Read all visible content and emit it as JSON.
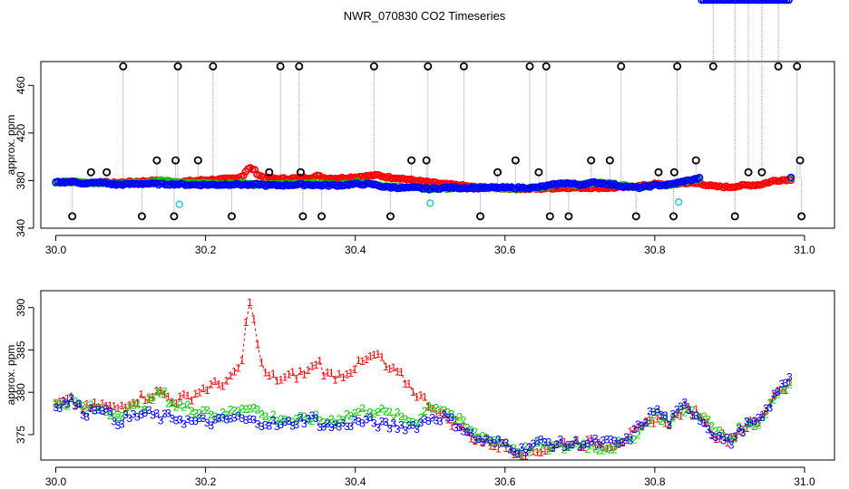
{
  "title": "NWR_070830  CO2 Timeseries",
  "colors": {
    "series1": "#ff0000",
    "series2": "#00cc00",
    "series3": "#0000ff",
    "outlier": "#000000",
    "flagged": "#33cccc",
    "spike": "#999999"
  },
  "chart_data": [
    {
      "type": "scatter",
      "panel": "top",
      "title": "NWR_070830  CO2 Timeseries",
      "xlabel": "",
      "ylabel": "approx. ppm",
      "xlim": [
        29.98,
        31.04
      ],
      "ylim": [
        340,
        480
      ],
      "xticks": [
        30.0,
        30.2,
        30.4,
        30.6,
        30.8,
        31.0
      ],
      "xtick_labels": [
        "30.0",
        "30.2",
        "30.4",
        "30.6",
        "30.8",
        "31.0"
      ],
      "yticks": [
        340,
        380,
        420,
        460
      ],
      "ytick_labels": [
        "340",
        "380",
        "420",
        "460"
      ],
      "grid": false,
      "spikes_high": [
        30.09,
        30.163,
        30.21,
        30.3,
        30.325,
        30.425,
        30.497,
        30.545,
        30.633,
        30.655,
        30.755,
        30.83,
        30.878,
        30.965,
        30.99
      ],
      "spikes_mid": [
        30.047,
        30.068,
        30.135,
        30.16,
        30.19,
        30.285,
        30.327,
        30.475,
        30.495,
        30.59,
        30.614,
        30.645,
        30.715,
        30.74,
        30.805,
        30.826,
        30.855,
        30.925,
        30.943,
        30.994
      ],
      "spikes_low": [
        30.022,
        30.115,
        30.158,
        30.235,
        30.33,
        30.355,
        30.447,
        30.567,
        30.66,
        30.685,
        30.775,
        30.825,
        30.907,
        30.996
      ],
      "flagged_points": [
        {
          "x": 30.165,
          "y": 360
        },
        {
          "x": 30.5,
          "y": 361
        },
        {
          "x": 30.832,
          "y": 362
        }
      ]
    },
    {
      "type": "line",
      "panel": "bottom",
      "xlabel": "",
      "ylabel": "approx. ppm",
      "xlim": [
        29.98,
        31.04
      ],
      "ylim": [
        372,
        392
      ],
      "xticks": [
        30.0,
        30.2,
        30.4,
        30.6,
        30.8,
        31.0
      ],
      "xtick_labels": [
        "30.0",
        "30.2",
        "30.4",
        "30.6",
        "30.8",
        "31.0"
      ],
      "yticks": [
        375,
        380,
        385,
        390
      ],
      "ytick_labels": [
        "375",
        "380",
        "385",
        "390"
      ],
      "grid": false,
      "series": [
        {
          "marker": "1",
          "color": "#ff0000",
          "x": [
            30.0,
            30.02,
            30.04,
            30.06,
            30.08,
            30.1,
            30.12,
            30.14,
            30.16,
            30.18,
            30.2,
            30.22,
            30.24,
            30.25,
            30.255,
            30.26,
            30.265,
            30.27,
            30.28,
            30.3,
            30.32,
            30.34,
            30.35,
            30.36,
            30.38,
            30.4,
            30.42,
            30.43,
            30.44,
            30.46,
            30.48,
            30.5,
            30.52,
            30.54,
            30.56,
            30.58,
            30.6,
            30.62,
            30.64,
            30.66,
            30.68,
            30.7,
            30.72,
            30.74,
            30.76,
            30.78,
            30.8,
            30.82,
            30.84,
            30.86,
            30.88,
            30.9,
            30.92,
            30.94,
            30.96,
            30.98
          ],
          "values": [
            378.5,
            379,
            378,
            378.5,
            378,
            379,
            379.5,
            380,
            379,
            379.5,
            380.5,
            381,
            382,
            384,
            389,
            390.5,
            389,
            385,
            382,
            381.5,
            382,
            382.5,
            384,
            382,
            382,
            383,
            384,
            384.5,
            383,
            382,
            380,
            378.5,
            377,
            376,
            374.5,
            374,
            373.5,
            373,
            373,
            373.5,
            374,
            374,
            374,
            373.8,
            374.5,
            375.5,
            377,
            376.5,
            378,
            377.5,
            375,
            374.5,
            376,
            376.5,
            380,
            381
          ]
        },
        {
          "marker": "2",
          "color": "#00cc00",
          "x": [
            30.0,
            30.02,
            30.04,
            30.06,
            30.08,
            30.1,
            30.12,
            30.14,
            30.16,
            30.18,
            30.2,
            30.22,
            30.24,
            30.26,
            30.28,
            30.3,
            30.32,
            30.34,
            30.36,
            30.38,
            30.4,
            30.42,
            30.44,
            30.46,
            30.48,
            30.5,
            30.52,
            30.54,
            30.56,
            30.58,
            30.6,
            30.62,
            30.64,
            30.66,
            30.68,
            30.7,
            30.72,
            30.74,
            30.76,
            30.78,
            30.8,
            30.82,
            30.84,
            30.86,
            30.88,
            30.9,
            30.92,
            30.94,
            30.96,
            30.98
          ],
          "values": [
            378.5,
            379,
            378,
            378,
            377.5,
            378,
            378.5,
            380,
            378.5,
            378,
            378,
            377,
            378,
            378.5,
            377,
            377,
            376.5,
            377,
            376.5,
            377,
            377.5,
            378,
            377.5,
            377,
            376.5,
            378.5,
            378,
            376.5,
            375,
            374.5,
            374,
            373,
            373.5,
            373.5,
            373.5,
            374,
            373.5,
            373.5,
            374,
            375.5,
            377.5,
            376.5,
            378,
            377.5,
            375.5,
            374.5,
            376,
            376.5,
            379.5,
            381
          ]
        },
        {
          "marker": "3",
          "color": "#0000ff",
          "x": [
            30.0,
            30.02,
            30.04,
            30.06,
            30.08,
            30.1,
            30.12,
            30.14,
            30.16,
            30.18,
            30.2,
            30.22,
            30.24,
            30.26,
            30.28,
            30.3,
            30.32,
            30.34,
            30.36,
            30.38,
            30.4,
            30.42,
            30.44,
            30.46,
            30.48,
            30.5,
            30.52,
            30.54,
            30.56,
            30.58,
            30.6,
            30.62,
            30.64,
            30.66,
            30.68,
            30.7,
            30.72,
            30.74,
            30.76,
            30.78,
            30.8,
            30.82,
            30.84,
            30.86,
            30.88,
            30.9,
            30.92,
            30.94,
            30.96,
            30.98
          ],
          "values": [
            378.5,
            379,
            377.5,
            378.5,
            376.5,
            377,
            377.5,
            377,
            377,
            376.5,
            376.5,
            376.5,
            377,
            376.5,
            376.5,
            376,
            376.5,
            377,
            376,
            376,
            376.5,
            376.5,
            376,
            376,
            376,
            377,
            377,
            376,
            374.5,
            374,
            374,
            373,
            374,
            374,
            373.8,
            374,
            374,
            374,
            374,
            376,
            378,
            376.5,
            378.5,
            377,
            375,
            374,
            376,
            376.5,
            379.5,
            382
          ]
        }
      ]
    }
  ]
}
